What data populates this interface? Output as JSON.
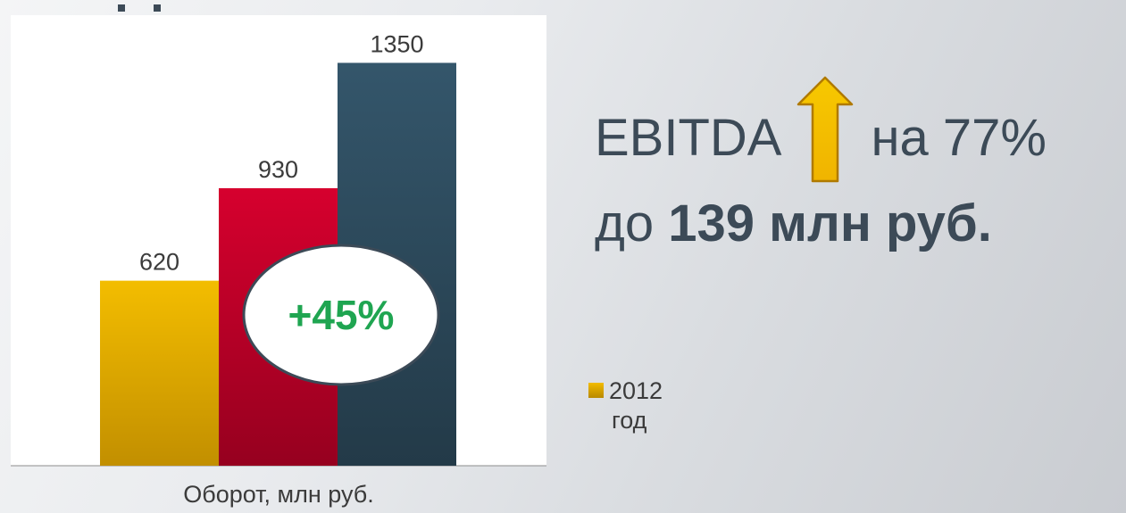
{
  "chart_data": {
    "type": "bar",
    "categories": [
      "",
      "",
      ""
    ],
    "values": [
      620,
      930,
      1350
    ],
    "value_labels": [
      "620",
      "930",
      "1350"
    ],
    "bar_colors": [
      {
        "top": "#f3bd00",
        "bottom": "#c28f00"
      },
      {
        "top": "#d6002e",
        "bottom": "#96001f"
      },
      {
        "top": "#34566b",
        "bottom": "#233a48"
      }
    ],
    "xlabel": "Оборот, млн руб.",
    "ylim": [
      0,
      1450
    ],
    "grid": false,
    "annotation": "+45%",
    "legend": [
      {
        "name": "2012 год",
        "color": "#f3bd00"
      }
    ],
    "legend_placement": "right"
  },
  "legend": {
    "year": "2012",
    "unit": "год"
  },
  "ebitda": {
    "label": "EBITDA",
    "change": "на 77%",
    "prefix": "до",
    "amount": "139 млн руб.",
    "arrow_color": "#f3bd00"
  }
}
